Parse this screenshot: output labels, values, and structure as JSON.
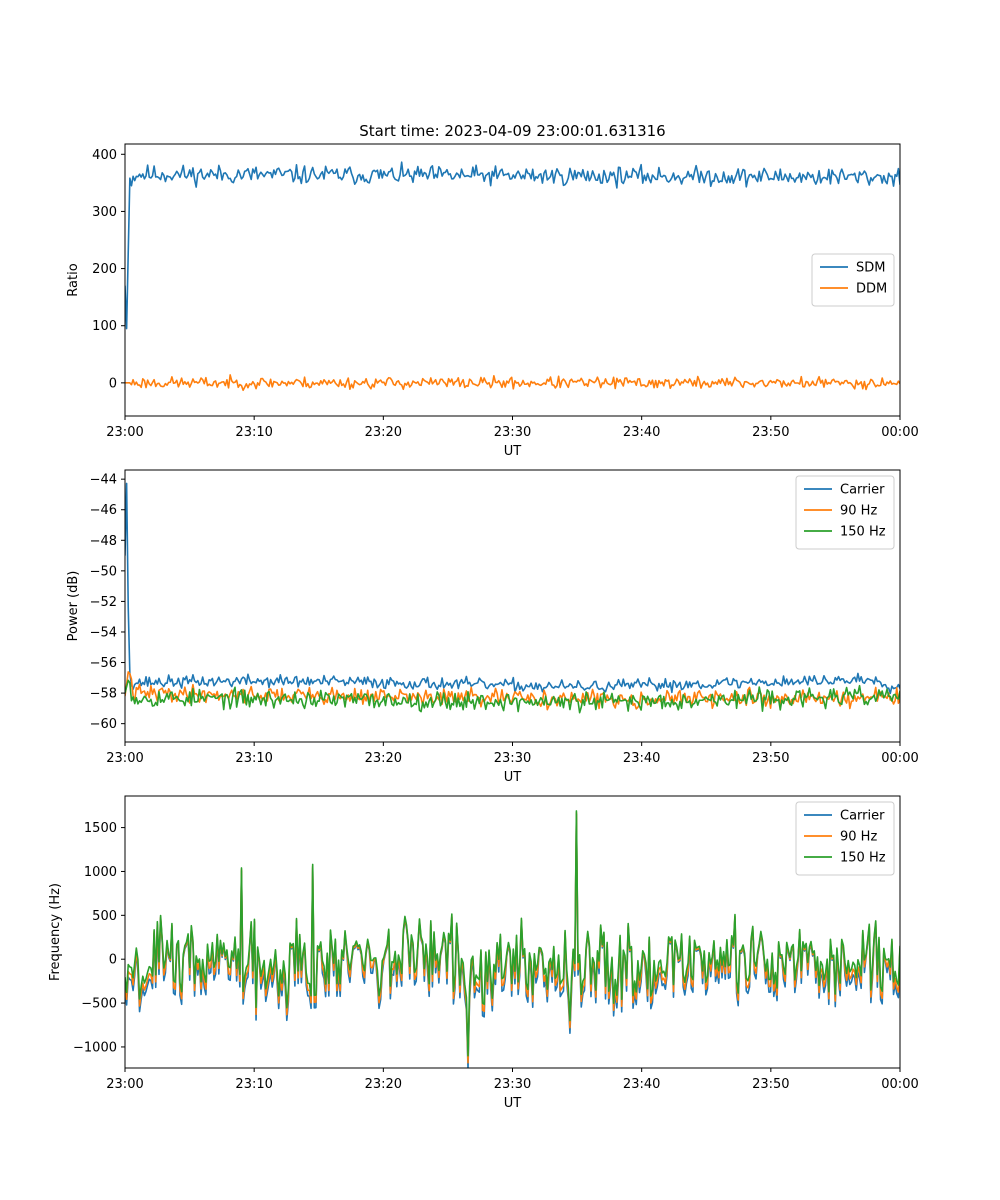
{
  "figure": {
    "title": "Start time: 2023-04-09 23:00:01.631316"
  },
  "colors": {
    "blue": "#1f77b4",
    "orange": "#ff7f0e",
    "green": "#2ca02c"
  },
  "chart_data": [
    {
      "type": "line",
      "title": "Start time: 2023-04-09 23:00:01.631316",
      "xlabel": "UT",
      "ylabel": "Ratio",
      "xlim": [
        0,
        60
      ],
      "ylim": [
        -58,
        418
      ],
      "xticks": [
        0,
        10,
        20,
        30,
        40,
        50,
        60
      ],
      "xticklabels": [
        "23:00",
        "23:10",
        "23:20",
        "23:30",
        "23:40",
        "23:50",
        "00:00"
      ],
      "yticks": [
        0,
        100,
        200,
        300,
        400
      ],
      "yticklabels": [
        "0",
        "100",
        "200",
        "300",
        "400"
      ],
      "grid": false,
      "legend": "center-right",
      "series": [
        {
          "name": "SDM",
          "color": "#1f77b4",
          "anchors": [
            [
              0.0,
              170
            ],
            [
              0.1,
              95
            ],
            [
              0.2,
              95
            ],
            [
              0.3,
              360
            ],
            [
              0.5,
              355
            ],
            [
              0.8,
              365
            ],
            [
              60,
              360
            ]
          ],
          "noise": {
            "amp": 16,
            "seed": 11
          }
        },
        {
          "name": "DDM",
          "color": "#ff7f0e",
          "anchors": [
            [
              0.0,
              0
            ],
            [
              60,
              0
            ]
          ],
          "noise": {
            "amp": 10,
            "seed": 23
          }
        }
      ]
    },
    {
      "type": "line",
      "xlabel": "UT",
      "ylabel": "Power (dB)",
      "xlim": [
        0,
        60
      ],
      "ylim": [
        -61.2,
        -43.4
      ],
      "xticks": [
        0,
        10,
        20,
        30,
        40,
        50,
        60
      ],
      "xticklabels": [
        "23:00",
        "23:10",
        "23:20",
        "23:30",
        "23:40",
        "23:50",
        "00:00"
      ],
      "yticks": [
        -60,
        -58,
        -56,
        -54,
        -52,
        -50,
        -48,
        -46,
        -44
      ],
      "yticklabels": [
        "−60",
        "−58",
        "−56",
        "−54",
        "−52",
        "−50",
        "−48",
        "−46",
        "−44"
      ],
      "grid": false,
      "legend": "top-right",
      "series": [
        {
          "name": "Carrier",
          "color": "#1f77b4",
          "anchors": [
            [
              0.0,
              -49
            ],
            [
              0.05,
              -44.2
            ],
            [
              0.15,
              -44.3
            ],
            [
              0.3,
              -56.4
            ],
            [
              0.5,
              -57.3
            ],
            [
              10,
              -57.2
            ],
            [
              20,
              -57.3
            ],
            [
              35,
              -57.6
            ],
            [
              58,
              -57.1
            ],
            [
              60,
              -57.7
            ]
          ],
          "noise": {
            "amp": 0.4,
            "seed": 37
          }
        },
        {
          "name": "90 Hz",
          "color": "#ff7f0e",
          "anchors": [
            [
              0.0,
              -58.2
            ],
            [
              0.3,
              -56.3
            ],
            [
              0.6,
              -58.0
            ],
            [
              35,
              -58.4
            ],
            [
              60,
              -58.3
            ]
          ],
          "noise": {
            "amp": 0.55,
            "seed": 41
          }
        },
        {
          "name": "150 Hz",
          "color": "#2ca02c",
          "anchors": [
            [
              0.0,
              -58.0
            ],
            [
              0.3,
              -57.0
            ],
            [
              0.6,
              -58.3
            ],
            [
              35,
              -58.6
            ],
            [
              60,
              -58.2
            ]
          ],
          "noise": {
            "amp": 0.6,
            "seed": 53
          }
        }
      ]
    },
    {
      "type": "line",
      "xlabel": "UT",
      "ylabel": "Frequency (Hz)",
      "xlim": [
        0,
        60
      ],
      "ylim": [
        -1240,
        1860
      ],
      "xticks": [
        0,
        10,
        20,
        30,
        40,
        50,
        60
      ],
      "xticklabels": [
        "23:00",
        "23:10",
        "23:20",
        "23:30",
        "23:40",
        "23:50",
        "00:00"
      ],
      "yticks": [
        -1000,
        -500,
        0,
        500,
        1000,
        1500
      ],
      "yticklabels": [
        "−1000",
        "−500",
        "0",
        "500",
        "1000",
        "1500"
      ],
      "grid": false,
      "legend": "top-right",
      "base": {
        "amp": 420,
        "seed": 67,
        "spikes": [
          [
            26.6,
            -1100
          ],
          [
            35.0,
            1690
          ],
          [
            14.5,
            1080
          ],
          [
            9.0,
            1040
          ],
          [
            34.4,
            -700
          ]
        ]
      },
      "series": [
        {
          "name": "Carrier",
          "color": "#1f77b4",
          "scale": 1.0,
          "offset": -90
        },
        {
          "name": "90 Hz",
          "color": "#ff7f0e",
          "scale": 1.0,
          "offset": -50
        },
        {
          "name": "150 Hz",
          "color": "#2ca02c",
          "scale": 1.0,
          "offset": 0
        }
      ]
    }
  ]
}
